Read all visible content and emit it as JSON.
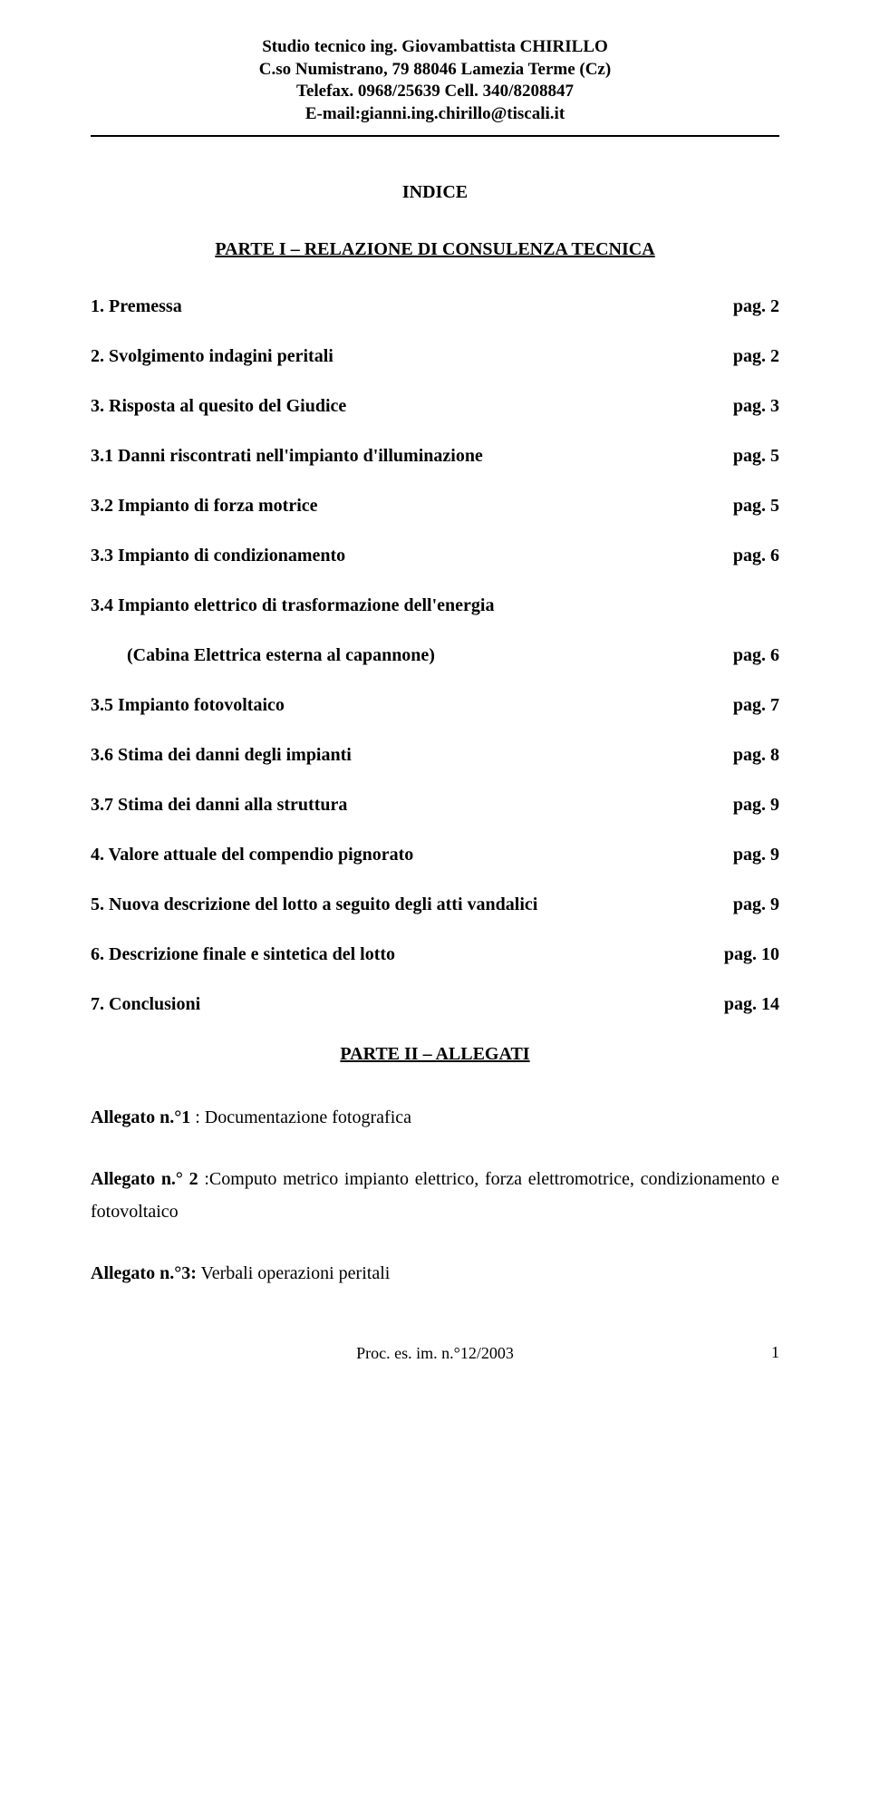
{
  "letterhead": {
    "line1": "Studio tecnico ing. Giovambattista CHIRILLO",
    "line2": "C.so Numistrano, 79 88046 Lamezia Terme (Cz)",
    "line3": "Telefax. 0968/25639 Cell. 340/8208847",
    "line4": "E-mail:gianni.ing.chirillo@tiscali.it"
  },
  "indice_title": "INDICE",
  "parte1_title": "PARTE I – RELAZIONE DI CONSULENZA TECNICA",
  "parte2_title": "PARTE II – ALLEGATI",
  "pag_label": "pag.",
  "toc": [
    {
      "label": "1. Premessa",
      "page": "2",
      "indent": false
    },
    {
      "label": "2. Svolgimento indagini peritali",
      "page": "2",
      "indent": false
    },
    {
      "label": "3. Risposta al quesito del Giudice",
      "page": "3",
      "indent": false
    },
    {
      "label": "3.1 Danni riscontrati nell'impianto d'illuminazione",
      "page": "5",
      "indent": false
    },
    {
      "label": "3.2 Impianto di forza motrice",
      "page": "5",
      "indent": false
    },
    {
      "label": "3.3 Impianto di condizionamento",
      "page": "6",
      "indent": false
    },
    {
      "label": "3.4 Impianto elettrico di trasformazione dell'energia",
      "page": null,
      "indent": false
    },
    {
      "label": "(Cabina Elettrica esterna al capannone)",
      "page": "6",
      "indent": true
    },
    {
      "label": "3.5 Impianto fotovoltaico",
      "page": "7",
      "indent": false
    },
    {
      "label": "3.6 Stima dei danni degli impianti",
      "page": "8",
      "indent": false
    },
    {
      "label": "3.7 Stima dei danni alla struttura",
      "page": "9",
      "indent": false
    },
    {
      "label": "4. Valore attuale del compendio pignorato",
      "page": "9",
      "indent": false
    },
    {
      "label": "5. Nuova descrizione del lotto a seguito degli atti vandalici",
      "page": "9",
      "indent": false
    },
    {
      "label": "6. Descrizione finale e sintetica del lotto",
      "page": "10",
      "indent": false
    },
    {
      "label": "7. Conclusioni",
      "page": "14",
      "indent": false
    }
  ],
  "allegati": [
    {
      "bold": "Allegato n.°1",
      "text": " : Documentazione fotografica"
    },
    {
      "bold": "Allegato n.° 2",
      "text": " :Computo metrico impianto elettrico, forza elettromotrice, condizionamento e fotovoltaico"
    },
    {
      "bold": "Allegato n.°3:",
      "text": " Verbali operazioni peritali"
    }
  ],
  "footer": "Proc. es. im. n.°12/2003",
  "page_number": "1",
  "colors": {
    "background": "#ffffff",
    "text": "#000000",
    "separator": "#000000"
  },
  "typography": {
    "font_family": "Times New Roman",
    "letterhead_fontsize": 19,
    "title_fontsize": 20,
    "body_fontsize": 20,
    "footer_fontsize": 18
  }
}
